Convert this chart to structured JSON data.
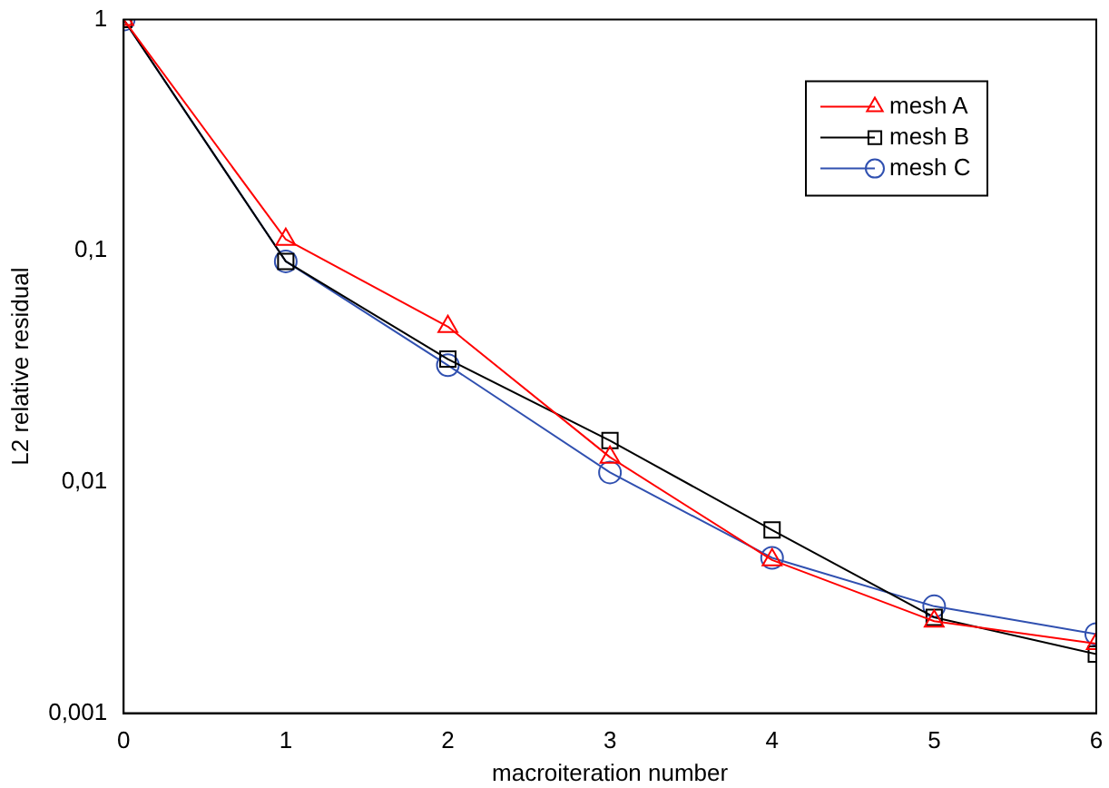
{
  "chart_data": {
    "type": "line",
    "xlabel": "macroiteration number",
    "ylabel": "L2 relative residual",
    "x": [
      0,
      1,
      2,
      3,
      4,
      5,
      6
    ],
    "series": [
      {
        "name": "mesh A",
        "color": "#ff0000",
        "marker": "triangle",
        "values": [
          1,
          0.112,
          0.047,
          0.0128,
          0.0046,
          0.0025,
          0.002
        ]
      },
      {
        "name": "mesh B",
        "color": "#000000",
        "marker": "square",
        "values": [
          1,
          0.09,
          0.034,
          0.0151,
          0.0062,
          0.0026,
          0.0018
        ]
      },
      {
        "name": "mesh C",
        "color": "#3050b0",
        "marker": "circle",
        "values": [
          1,
          0.09,
          0.032,
          0.011,
          0.0047,
          0.0029,
          0.0022
        ]
      }
    ],
    "log": "y",
    "xlim": [
      0,
      6
    ],
    "ylim": [
      0.001,
      1
    ],
    "xticks": [
      0,
      1,
      2,
      3,
      4,
      5,
      6
    ],
    "yticks": [
      {
        "value": 0.001,
        "label": "0,001"
      },
      {
        "value": 0.01,
        "label": "0,01"
      },
      {
        "value": 0.1,
        "label": "0,1"
      },
      1
    ],
    "grid": false,
    "legend": "top right",
    "line_style": "solid"
  }
}
